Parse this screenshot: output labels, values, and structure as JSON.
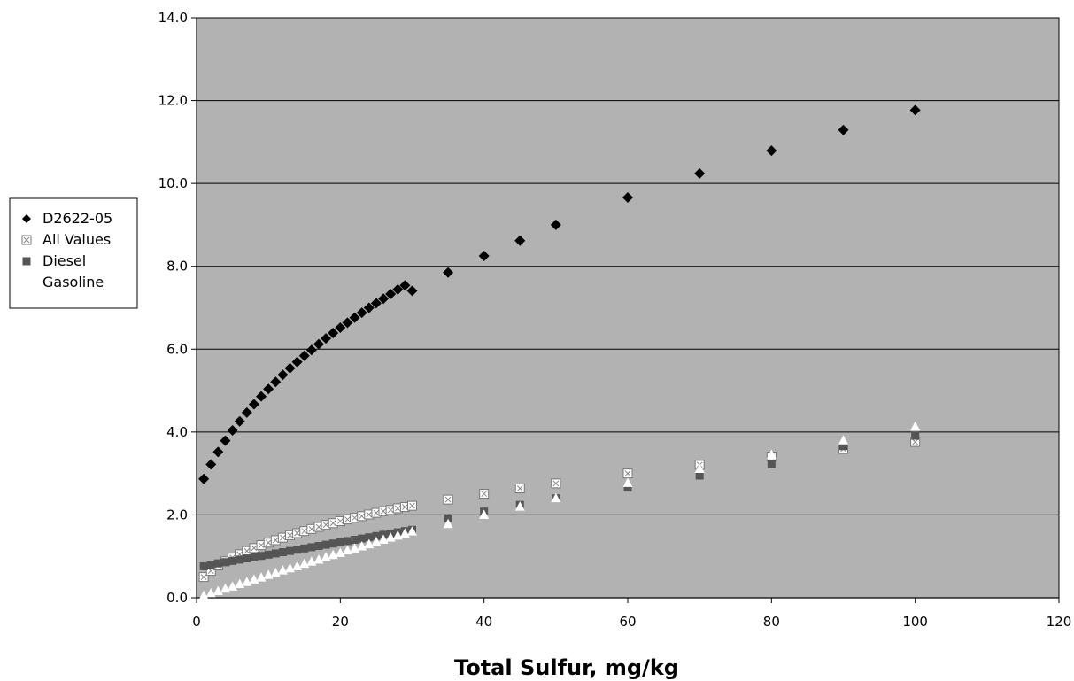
{
  "chart_data": {
    "type": "scatter",
    "title": "",
    "xlabel": "Total Sulfur, mg/kg",
    "ylabel": "",
    "xlim": [
      0,
      120
    ],
    "ylim": [
      0,
      14
    ],
    "x_ticks": [
      "0",
      "20",
      "40",
      "60",
      "80",
      "100",
      "120"
    ],
    "y_ticks": [
      "0.0",
      "2.0",
      "4.0",
      "6.0",
      "8.0",
      "10.0",
      "12.0",
      "14.0"
    ],
    "grid": "horizontal",
    "legend_position": "left",
    "plot_background": "#b2b2b2",
    "series": [
      {
        "name": "D2622-05",
        "marker": "diamond",
        "color": "#000000",
        "x": [
          1,
          2,
          3,
          4,
          5,
          6,
          7,
          8,
          9,
          10,
          11,
          12,
          13,
          14,
          15,
          16,
          17,
          18,
          19,
          20,
          21,
          22,
          23,
          24,
          25,
          26,
          27,
          28,
          29,
          30,
          35,
          40,
          45,
          50,
          60,
          70,
          80,
          90,
          100
        ],
        "y": [
          2.87,
          3.22,
          3.52,
          3.79,
          4.04,
          4.26,
          4.47,
          4.67,
          4.86,
          5.04,
          5.21,
          5.38,
          5.54,
          5.69,
          5.84,
          5.98,
          6.12,
          6.26,
          6.39,
          6.52,
          6.64,
          6.76,
          6.88,
          7.0,
          7.11,
          7.22,
          7.33,
          7.44,
          7.54,
          7.41,
          7.85,
          8.25,
          8.62,
          9.0,
          9.66,
          10.24,
          10.79,
          11.29,
          11.77
        ]
      },
      {
        "name": "All Values",
        "marker": "crossed-square",
        "color": "#ffffff",
        "x": [
          1,
          2,
          3,
          4,
          5,
          6,
          7,
          8,
          9,
          10,
          11,
          12,
          13,
          14,
          15,
          16,
          17,
          18,
          19,
          20,
          21,
          22,
          23,
          24,
          25,
          26,
          27,
          28,
          29,
          30,
          35,
          40,
          45,
          50,
          60,
          70,
          80,
          90,
          100
        ],
        "y": [
          0.5,
          0.65,
          0.78,
          0.88,
          0.97,
          1.05,
          1.13,
          1.2,
          1.27,
          1.33,
          1.39,
          1.45,
          1.51,
          1.56,
          1.61,
          1.66,
          1.71,
          1.76,
          1.8,
          1.85,
          1.89,
          1.93,
          1.97,
          2.01,
          2.05,
          2.09,
          2.12,
          2.16,
          2.19,
          2.22,
          2.37,
          2.51,
          2.64,
          2.76,
          3.0,
          3.21,
          3.41,
          3.59,
          3.76
        ]
      },
      {
        "name": "Diesel",
        "marker": "square",
        "color": "#555555",
        "x": [
          1,
          2,
          3,
          4,
          5,
          6,
          7,
          8,
          9,
          10,
          11,
          12,
          13,
          14,
          15,
          16,
          17,
          18,
          19,
          20,
          21,
          22,
          23,
          24,
          25,
          26,
          27,
          28,
          29,
          30,
          35,
          40,
          45,
          50,
          60,
          70,
          80,
          90,
          100
        ],
        "y": [
          0.76,
          0.79,
          0.83,
          0.86,
          0.89,
          0.92,
          0.95,
          0.98,
          1.01,
          1.04,
          1.07,
          1.1,
          1.13,
          1.16,
          1.19,
          1.22,
          1.25,
          1.28,
          1.31,
          1.34,
          1.37,
          1.4,
          1.43,
          1.46,
          1.49,
          1.52,
          1.55,
          1.58,
          1.61,
          1.64,
          1.92,
          2.08,
          2.24,
          2.4,
          2.66,
          2.95,
          3.22,
          3.66,
          3.91
        ]
      },
      {
        "name": "Gasoline",
        "marker": "triangle",
        "color": "#ffffff",
        "x": [
          1,
          2,
          3,
          4,
          5,
          6,
          7,
          8,
          9,
          10,
          11,
          12,
          13,
          14,
          15,
          16,
          17,
          18,
          19,
          20,
          21,
          22,
          23,
          24,
          25,
          26,
          27,
          28,
          29,
          30,
          35,
          40,
          45,
          50,
          60,
          70,
          80,
          90,
          100
        ],
        "y": [
          0.05,
          0.11,
          0.16,
          0.22,
          0.27,
          0.33,
          0.38,
          0.44,
          0.49,
          0.55,
          0.6,
          0.66,
          0.71,
          0.76,
          0.82,
          0.87,
          0.92,
          0.98,
          1.03,
          1.08,
          1.14,
          1.19,
          1.24,
          1.29,
          1.35,
          1.4,
          1.45,
          1.5,
          1.55,
          1.6,
          1.78,
          2.0,
          2.2,
          2.4,
          2.77,
          3.11,
          3.45,
          3.8,
          4.13
        ]
      }
    ]
  }
}
